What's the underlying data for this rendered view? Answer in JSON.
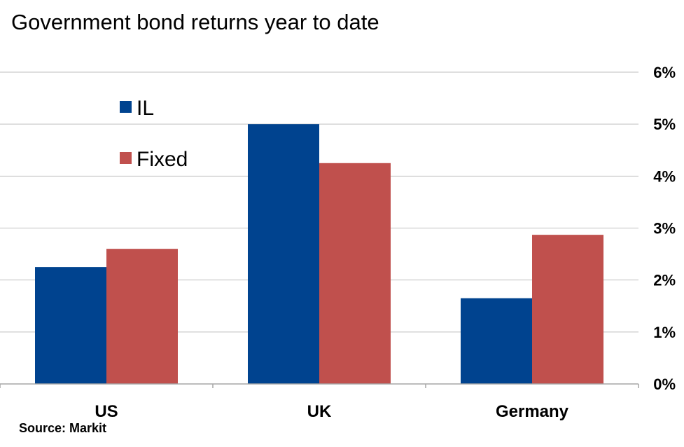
{
  "chart_data": {
    "type": "bar",
    "title": "Government bond returns year to date",
    "categories": [
      "US",
      "UK",
      "Germany"
    ],
    "series": [
      {
        "name": "IL",
        "color": "#00438F",
        "values": [
          2.25,
          5.0,
          1.65
        ]
      },
      {
        "name": "Fixed",
        "color": "#C0504D",
        "values": [
          2.6,
          4.25,
          2.87
        ]
      }
    ],
    "ylim": [
      0,
      6
    ],
    "yticks": [
      "0%",
      "1%",
      "2%",
      "3%",
      "4%",
      "5%",
      "6%"
    ],
    "y_axis_side": "right",
    "grid": true,
    "legend_placement": "top-left",
    "xlabel": "",
    "ylabel": ""
  },
  "source": "Source: Markit"
}
